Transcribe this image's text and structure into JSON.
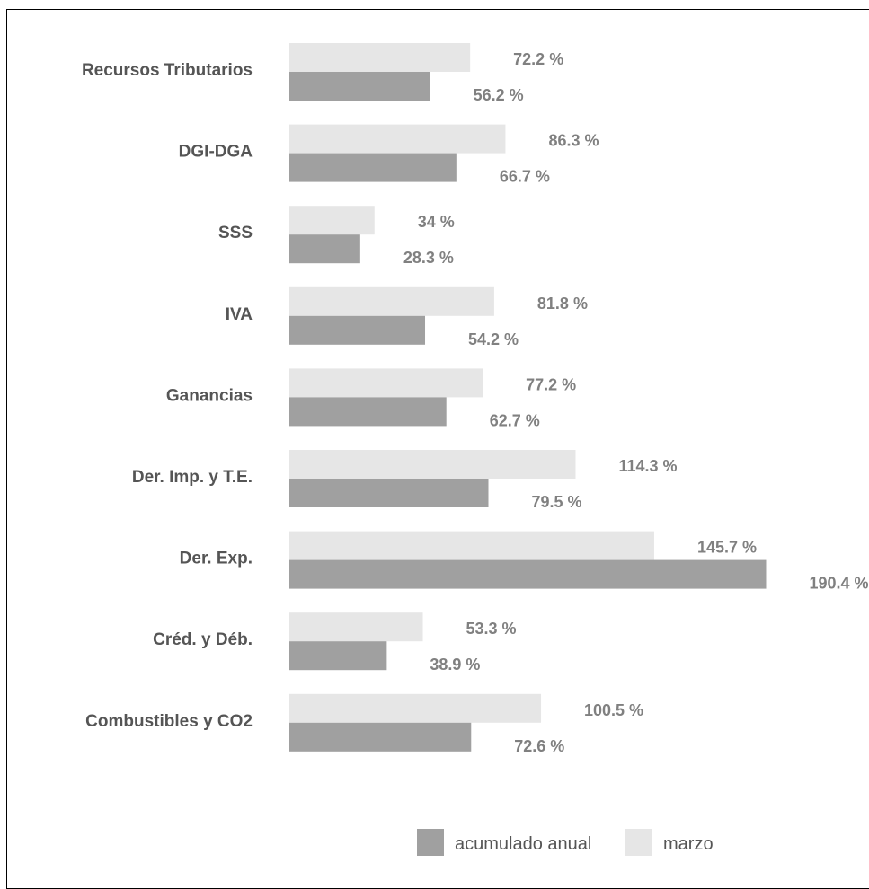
{
  "chart_data": {
    "type": "bar",
    "orientation": "horizontal",
    "categories": [
      "Recursos Tributarios",
      "DGI-DGA",
      "SSS",
      "IVA",
      "Ganancias",
      "Der. Imp. y T.E.",
      "Der. Exp.",
      "Créd. y Déb.",
      "Combustibles y CO2"
    ],
    "series": [
      {
        "name": "marzo",
        "values": [
          72.2,
          86.3,
          34,
          81.8,
          77.2,
          114.3,
          145.7,
          53.3,
          100.5
        ],
        "labels": [
          "72.2 %",
          "86.3 %",
          "34 %",
          "81.8 %",
          "77.2 %",
          "114.3 %",
          "145.7 %",
          "53.3 %",
          "100.5 %"
        ],
        "color": "#e6e6e6"
      },
      {
        "name": "acumulado anual",
        "values": [
          56.2,
          66.7,
          28.3,
          54.2,
          62.7,
          79.5,
          190.4,
          38.9,
          72.6
        ],
        "labels": [
          "56.2 %",
          "66.7 %",
          "28.3 %",
          "54.2 %",
          "62.7 %",
          "79.5 %",
          "190.4 %",
          "38.9 %",
          "72.6 %"
        ],
        "color": "#a0a0a0"
      }
    ],
    "legend": {
      "placement": "bottom",
      "order": [
        "acumulado anual",
        "marzo"
      ]
    },
    "title": "",
    "xlabel": "",
    "ylabel": "",
    "grid": false,
    "axes_visible": false
  }
}
